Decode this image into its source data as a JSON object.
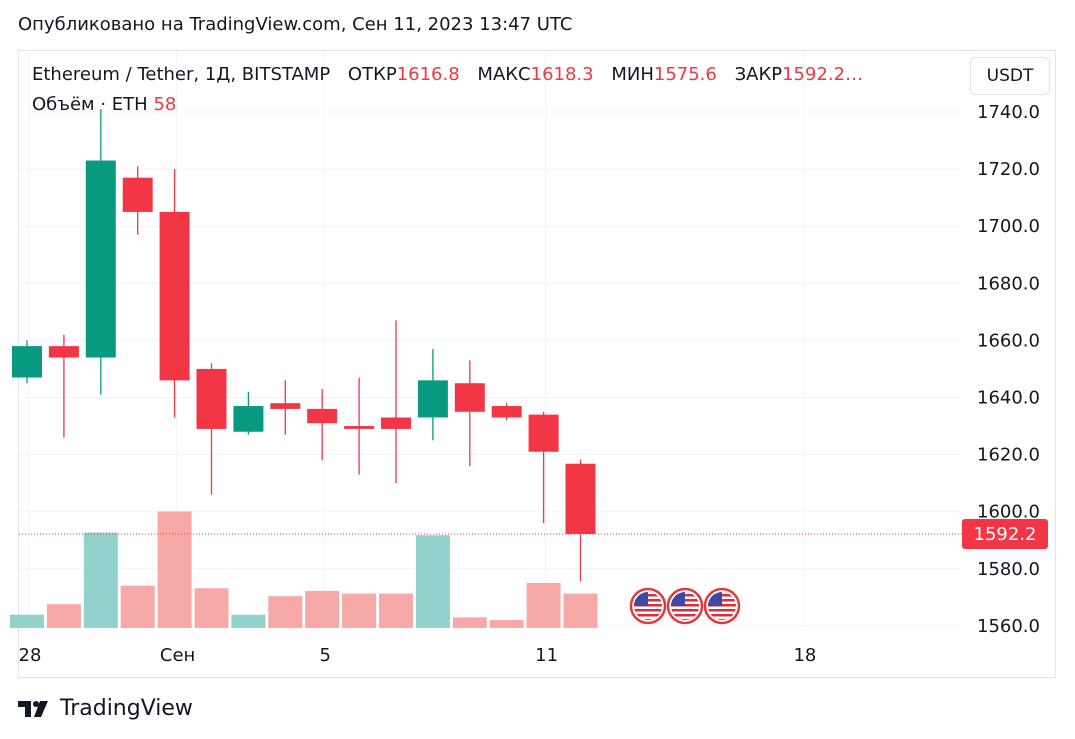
{
  "header": {
    "published": "Опубликовано на TradingView.com, Сен 11, 2023 13:47 UTC"
  },
  "legend": {
    "symbol": "Ethereum / Tether, 1Д, BITSTAMP",
    "open_label": "ОТКР",
    "open_value": "1616.8",
    "high_label": "МАКС",
    "high_value": "1618.3",
    "low_label": "МИН",
    "low_value": "1575.6",
    "close_label": "ЗАКР",
    "close_value": "1592.2…",
    "volume_label": "Объём · ETH",
    "volume_value": "58"
  },
  "currency_button": "USDT",
  "footer": {
    "brand": "TradingView"
  },
  "colors": {
    "up": "#089981",
    "down": "#f23645",
    "vol_up": "#92d2cc",
    "vol_down": "#f7a9a7",
    "grid": "#f0f3fa",
    "price_label_bg": "#f23645"
  },
  "chart_data": {
    "type": "candlestick",
    "title": "",
    "x_tick_labels": [
      "28",
      "Сен",
      "5",
      "11",
      "18"
    ],
    "x_tick_positions": [
      0,
      4,
      8,
      14,
      21
    ],
    "price_axis_ticks": [
      1740,
      1720,
      1700,
      1680,
      1660,
      1640,
      1620,
      1600,
      1580,
      1560
    ],
    "price_range": [
      1557,
      1750
    ],
    "last_price": 1592.2,
    "last_price_label": "1592.2",
    "candles": [
      {
        "o": 1647,
        "h": 1660,
        "l": 1645,
        "c": 1658,
        "v": 5
      },
      {
        "o": 1658,
        "h": 1662,
        "l": 1626,
        "c": 1654,
        "v": 9
      },
      {
        "o": 1654,
        "h": 1741,
        "l": 1641,
        "c": 1723,
        "v": 36
      },
      {
        "o": 1717,
        "h": 1721,
        "l": 1697,
        "c": 1705,
        "v": 16
      },
      {
        "o": 1705,
        "h": 1720,
        "l": 1633,
        "c": 1646,
        "v": 44
      },
      {
        "o": 1650,
        "h": 1652,
        "l": 1606,
        "c": 1629,
        "v": 15
      },
      {
        "o": 1628,
        "h": 1642,
        "l": 1627,
        "c": 1637,
        "v": 5
      },
      {
        "o": 1638,
        "h": 1646,
        "l": 1627,
        "c": 1636,
        "v": 12
      },
      {
        "o": 1636,
        "h": 1643,
        "l": 1618,
        "c": 1631,
        "v": 14
      },
      {
        "o": 1630,
        "h": 1647,
        "l": 1613,
        "c": 1629,
        "v": 13
      },
      {
        "o": 1633,
        "h": 1667,
        "l": 1610,
        "c": 1629,
        "v": 13
      },
      {
        "o": 1633,
        "h": 1657,
        "l": 1625,
        "c": 1646,
        "v": 35
      },
      {
        "o": 1645,
        "h": 1653,
        "l": 1616,
        "c": 1635,
        "v": 4
      },
      {
        "o": 1637,
        "h": 1638,
        "l": 1632,
        "c": 1633,
        "v": 3
      },
      {
        "o": 1634,
        "h": 1635,
        "l": 1596,
        "c": 1621,
        "v": 17
      },
      {
        "o": 1616.8,
        "h": 1618.3,
        "l": 1575.6,
        "c": 1592.2,
        "v": 13
      }
    ],
    "event_markers": [
      {
        "icon": "us-flag-icon",
        "after_candle": 2
      },
      {
        "icon": "us-flag-icon",
        "after_candle": 3
      },
      {
        "icon": "us-flag-icon",
        "after_candle": 4
      }
    ]
  }
}
